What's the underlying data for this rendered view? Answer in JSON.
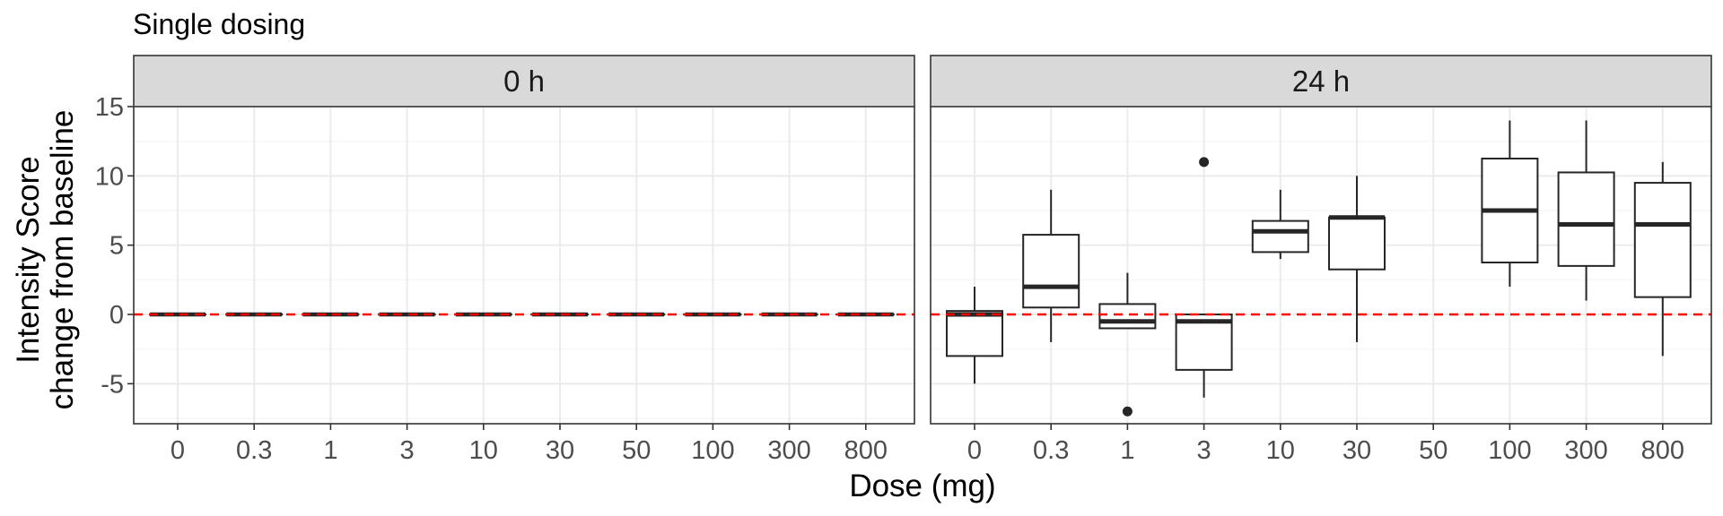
{
  "chart_data": {
    "type": "box",
    "title": "Single dosing",
    "xlabel": "Dose (mg)",
    "ylabel_lines": [
      "Intensity Score",
      "change from baseline"
    ],
    "categories": [
      "0",
      "0.3",
      "1",
      "3",
      "10",
      "30",
      "50",
      "100",
      "300",
      "800"
    ],
    "ylim": [
      -8,
      15
    ],
    "yticks": [
      15,
      10,
      5,
      0,
      -5
    ],
    "ytick_labels": [
      "15",
      "10",
      "5",
      "0",
      "-5"
    ],
    "reference_line": {
      "y": 0,
      "color": "#ff0000",
      "style": "dashed"
    },
    "grid": true,
    "panels": [
      {
        "label": "0 h",
        "boxes": [
          {
            "dose": "0",
            "min": 0,
            "q1": 0,
            "median": 0,
            "q3": 0,
            "max": 0,
            "outliers": []
          },
          {
            "dose": "0.3",
            "min": 0,
            "q1": 0,
            "median": 0,
            "q3": 0,
            "max": 0,
            "outliers": []
          },
          {
            "dose": "1",
            "min": 0,
            "q1": 0,
            "median": 0,
            "q3": 0,
            "max": 0,
            "outliers": []
          },
          {
            "dose": "3",
            "min": 0,
            "q1": 0,
            "median": 0,
            "q3": 0,
            "max": 0,
            "outliers": []
          },
          {
            "dose": "10",
            "min": 0,
            "q1": 0,
            "median": 0,
            "q3": 0,
            "max": 0,
            "outliers": []
          },
          {
            "dose": "30",
            "min": 0,
            "q1": 0,
            "median": 0,
            "q3": 0,
            "max": 0,
            "outliers": []
          },
          {
            "dose": "50",
            "min": 0,
            "q1": 0,
            "median": 0,
            "q3": 0,
            "max": 0,
            "outliers": []
          },
          {
            "dose": "100",
            "min": 0,
            "q1": 0,
            "median": 0,
            "q3": 0,
            "max": 0,
            "outliers": []
          },
          {
            "dose": "300",
            "min": 0,
            "q1": 0,
            "median": 0,
            "q3": 0,
            "max": 0,
            "outliers": []
          },
          {
            "dose": "800",
            "min": 0,
            "q1": 0,
            "median": 0,
            "q3": 0,
            "max": 0,
            "outliers": []
          }
        ]
      },
      {
        "label": "24 h",
        "boxes": [
          {
            "dose": "0",
            "min": -5,
            "q1": -3,
            "median": 0,
            "q3": 0.25,
            "max": 2,
            "outliers": []
          },
          {
            "dose": "0.3",
            "min": -2,
            "q1": 0.5,
            "median": 2,
            "q3": 5.75,
            "max": 9,
            "outliers": []
          },
          {
            "dose": "1",
            "min": -1,
            "q1": -1,
            "median": -0.5,
            "q3": 0.75,
            "max": 3,
            "outliers": [
              -7
            ]
          },
          {
            "dose": "3",
            "min": -6,
            "q1": -4,
            "median": -0.5,
            "q3": 0,
            "max": 0,
            "outliers": [
              11
            ]
          },
          {
            "dose": "10",
            "min": 4,
            "q1": 4.5,
            "median": 6,
            "q3": 6.75,
            "max": 9,
            "outliers": []
          },
          {
            "dose": "30",
            "min": -2,
            "q1": 3.25,
            "median": 7,
            "q3": 7,
            "max": 10,
            "outliers": []
          },
          {
            "dose": "100",
            "min": 2,
            "q1": 3.75,
            "median": 7.5,
            "q3": 11.25,
            "max": 14,
            "outliers": []
          },
          {
            "dose": "300",
            "min": 1,
            "q1": 3.5,
            "median": 6.5,
            "q3": 10.25,
            "max": 14,
            "outliers": []
          },
          {
            "dose": "800",
            "min": -3,
            "q1": 1.25,
            "median": 6.5,
            "q3": 9.5,
            "max": 11,
            "outliers": []
          }
        ]
      }
    ]
  },
  "colors": {
    "strip_fill": "#d9d9d9",
    "panel_border": "#333333",
    "grid_major": "#ebebeb",
    "grid_minor": "#f4f4f4",
    "box_line": "#262626",
    "tick_text": "#4d4d4d",
    "reference_line": "#ff0000"
  }
}
